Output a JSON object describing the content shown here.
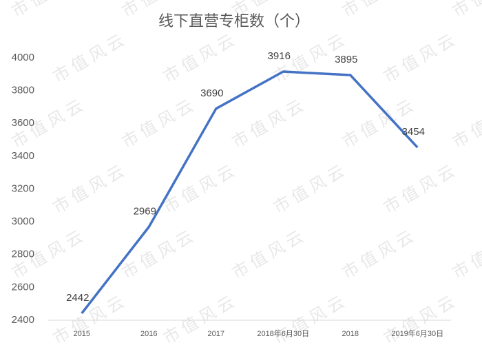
{
  "chart_data": {
    "type": "line",
    "title": "线下直营专柜数（个）",
    "watermark": "市值风云",
    "categories": [
      "2015",
      "2016",
      "2017",
      "2018年6月30日",
      "2018",
      "2019年6月30日"
    ],
    "values": [
      2442,
      2969,
      3690,
      3916,
      3895,
      3454
    ],
    "color": "#4472c4",
    "ylim": [
      2400,
      4000
    ],
    "yticks": [
      2400,
      2600,
      2800,
      3000,
      3200,
      3400,
      3600,
      3800,
      4000
    ],
    "grid": false
  }
}
